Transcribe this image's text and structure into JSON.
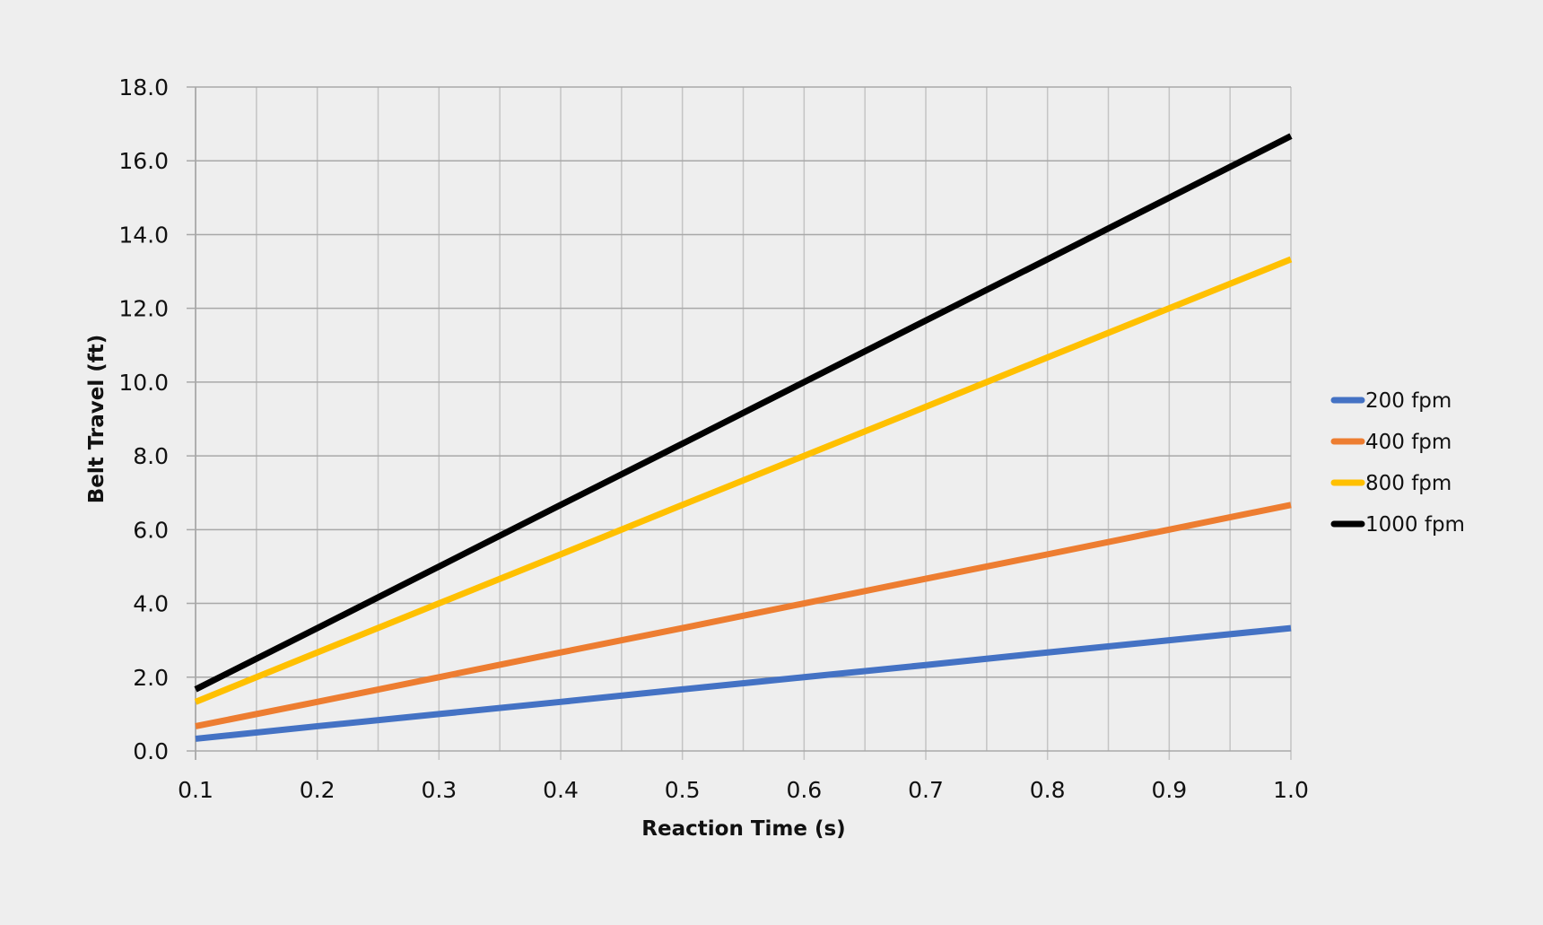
{
  "chart_data": {
    "type": "line",
    "title": "",
    "xlabel": "Reaction Time (s)",
    "ylabel": "Belt Travel (ft)",
    "x": [
      0.1,
      0.2,
      0.3,
      0.4,
      0.5,
      0.6,
      0.7,
      0.8,
      0.9,
      1.0
    ],
    "xlim": [
      0.1,
      1.0
    ],
    "ylim": [
      0,
      18
    ],
    "x_ticks": [
      "0.1",
      "0.2",
      "0.3",
      "0.4",
      "0.5",
      "0.6",
      "0.7",
      "0.8",
      "0.9",
      "1.0"
    ],
    "y_ticks": [
      "0.0",
      "2.0",
      "4.0",
      "6.0",
      "8.0",
      "10.0",
      "12.0",
      "14.0",
      "16.0",
      "18.0"
    ],
    "grid": true,
    "legend_position": "right",
    "series": [
      {
        "name": "200 fpm",
        "color": "#4472c4",
        "values": [
          0.33,
          0.67,
          1.0,
          1.33,
          1.67,
          2.0,
          2.33,
          2.67,
          3.0,
          3.33
        ]
      },
      {
        "name": "400 fpm",
        "color": "#ed7d31",
        "values": [
          0.67,
          1.33,
          2.0,
          2.67,
          3.33,
          4.0,
          4.67,
          5.33,
          6.0,
          6.67
        ]
      },
      {
        "name": "800 fpm",
        "color": "#ffc000",
        "values": [
          1.33,
          2.67,
          4.0,
          5.33,
          6.67,
          8.0,
          9.33,
          10.67,
          12.0,
          13.33
        ]
      },
      {
        "name": "1000 fpm",
        "color": "#000000",
        "values": [
          1.67,
          3.33,
          5.0,
          6.67,
          8.33,
          10.0,
          11.67,
          13.33,
          15.0,
          16.67
        ]
      }
    ]
  }
}
